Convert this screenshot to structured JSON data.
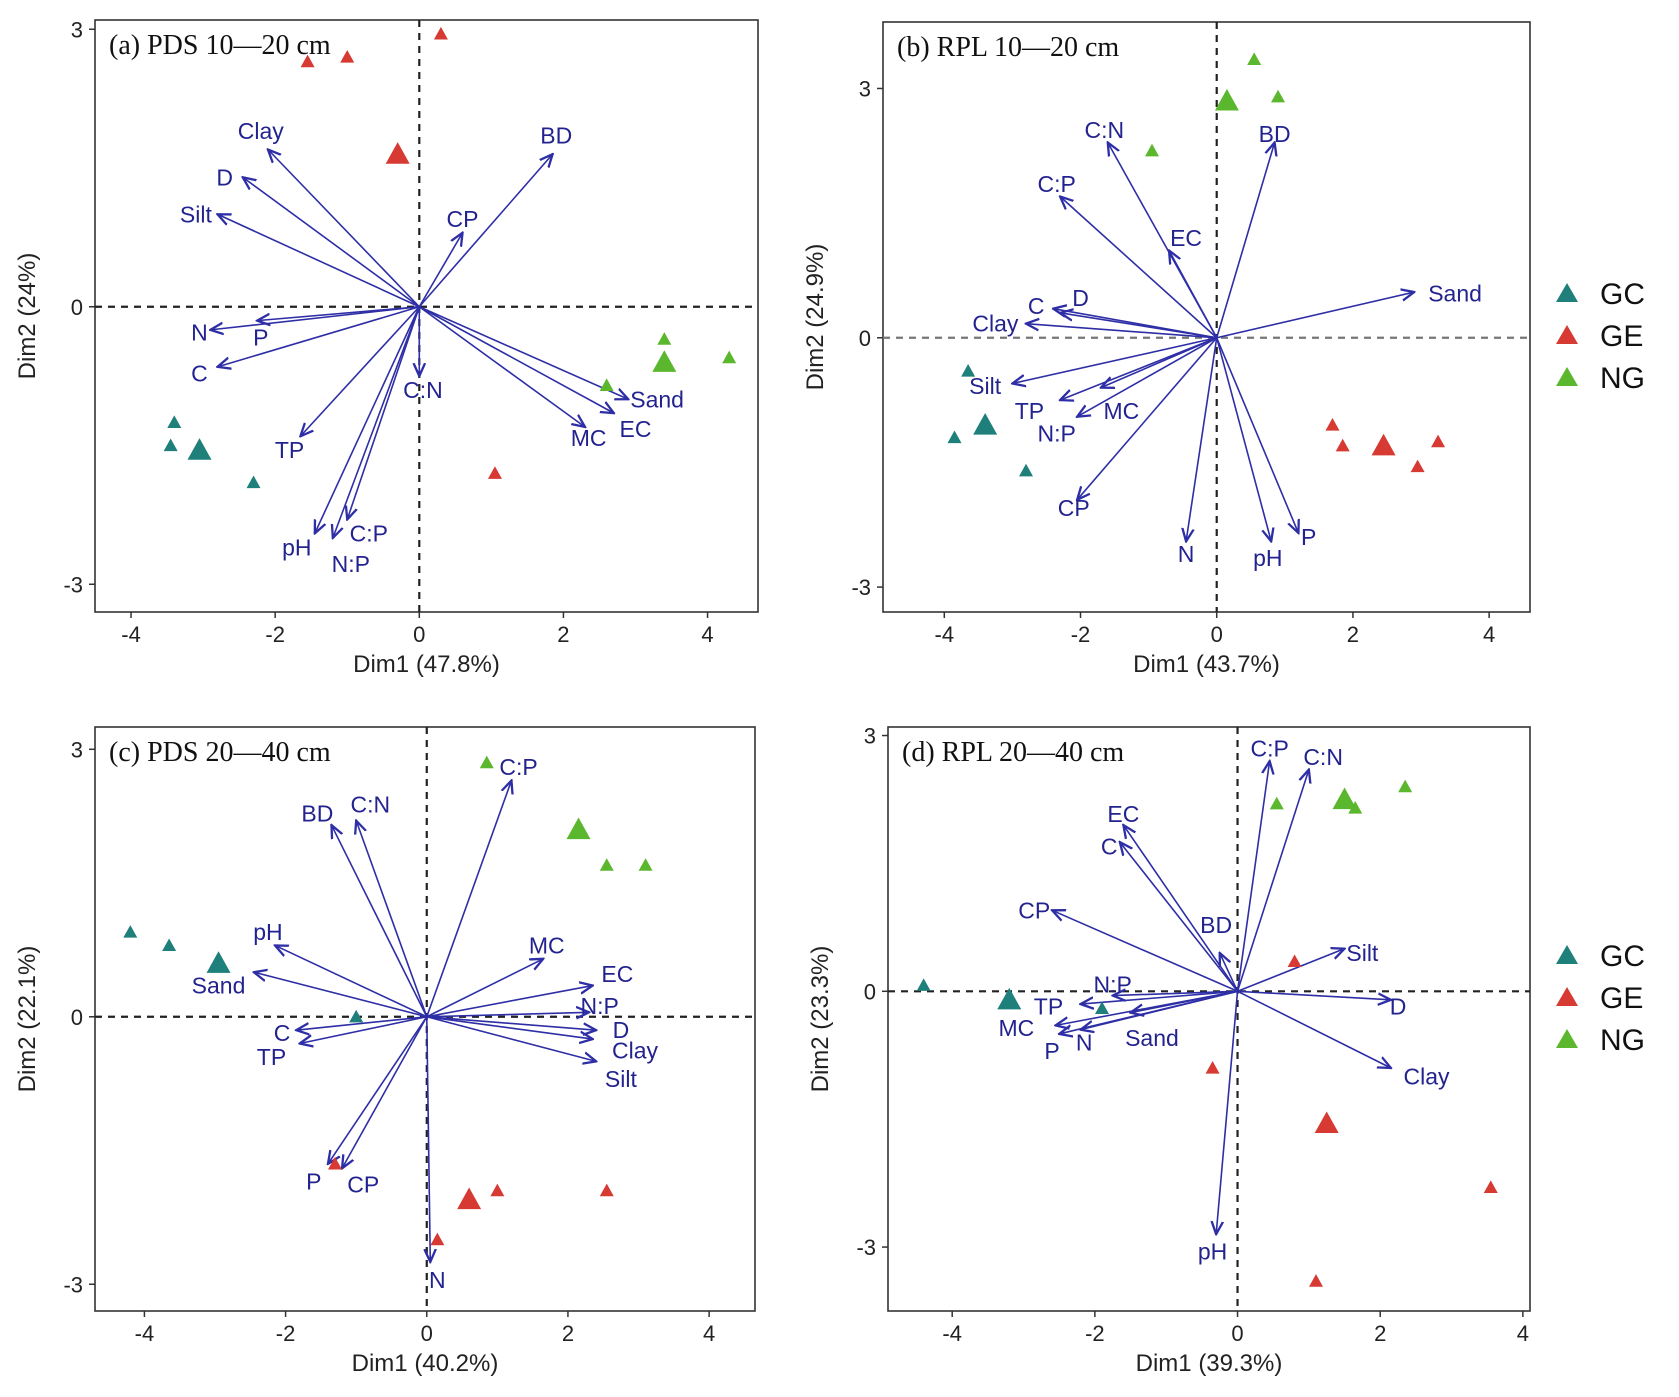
{
  "legend": {
    "items": [
      {
        "name": "GC",
        "color": "#1f7f7a"
      },
      {
        "name": "GE",
        "color": "#d63a32"
      },
      {
        "name": "NG",
        "color": "#5bb82e"
      }
    ]
  },
  "colors": {
    "vector": "#2e2ea6",
    "vector_label": "#23238f"
  },
  "chart_data": [
    {
      "type": "scatter",
      "title": "(a) PDS 10—20 cm",
      "xlabel": "Dim1 (47.8%)",
      "ylabel": "Dim2 (24%)",
      "xlim": [
        -4.5,
        4.7
      ],
      "ylim": [
        -3.3,
        3.1
      ],
      "xticks": [
        -4,
        -2,
        0,
        2,
        4
      ],
      "yticks": [
        -3,
        0,
        3
      ],
      "points": [
        {
          "group": "GC",
          "x": -3.4,
          "y": -1.25,
          "size": "small"
        },
        {
          "group": "GC",
          "x": -3.45,
          "y": -1.5,
          "size": "small"
        },
        {
          "group": "GC",
          "x": -3.05,
          "y": -1.55,
          "size": "large"
        },
        {
          "group": "GC",
          "x": -2.3,
          "y": -1.9,
          "size": "small"
        },
        {
          "group": "GE",
          "x": 0.3,
          "y": 2.95,
          "size": "small"
        },
        {
          "group": "GE",
          "x": -1.55,
          "y": 2.65,
          "size": "small"
        },
        {
          "group": "GE",
          "x": -1.0,
          "y": 2.7,
          "size": "small"
        },
        {
          "group": "GE",
          "x": -0.3,
          "y": 1.65,
          "size": "large"
        },
        {
          "group": "GE",
          "x": 1.05,
          "y": -1.8,
          "size": "small"
        },
        {
          "group": "NG",
          "x": 3.4,
          "y": -0.35,
          "size": "small"
        },
        {
          "group": "NG",
          "x": 3.4,
          "y": -0.6,
          "size": "large"
        },
        {
          "group": "NG",
          "x": 4.3,
          "y": -0.55,
          "size": "small"
        },
        {
          "group": "NG",
          "x": 2.6,
          "y": -0.85,
          "size": "small"
        }
      ],
      "vectors": [
        {
          "name": "Clay",
          "x": -2.1,
          "y": 1.7,
          "lx": -2.2,
          "ly": 1.9
        },
        {
          "name": "D",
          "x": -2.45,
          "y": 1.4,
          "lx": -2.7,
          "ly": 1.4
        },
        {
          "name": "Silt",
          "x": -2.8,
          "y": 1.0,
          "lx": -3.1,
          "ly": 1.0
        },
        {
          "name": "BD",
          "x": 1.85,
          "y": 1.65,
          "lx": 1.9,
          "ly": 1.85
        },
        {
          "name": "CP",
          "x": 0.6,
          "y": 0.8,
          "lx": 0.6,
          "ly": 0.95
        },
        {
          "name": "N",
          "x": -2.9,
          "y": -0.25,
          "lx": -3.05,
          "ly": -0.28
        },
        {
          "name": "P",
          "x": -2.25,
          "y": -0.15,
          "lx": -2.2,
          "ly": -0.33
        },
        {
          "name": "C",
          "x": -2.8,
          "y": -0.65,
          "lx": -3.05,
          "ly": -0.72
        },
        {
          "name": "C:N",
          "x": 0.0,
          "y": -0.75,
          "lx": 0.05,
          "ly": -0.9
        },
        {
          "name": "Sand",
          "x": 2.9,
          "y": -1.0,
          "lx": 3.3,
          "ly": -1.0
        },
        {
          "name": "MC",
          "x": 2.3,
          "y": -1.3,
          "lx": 2.35,
          "ly": -1.42
        },
        {
          "name": "EC",
          "x": 2.7,
          "y": -1.15,
          "lx": 3.0,
          "ly": -1.32
        },
        {
          "name": "TP",
          "x": -1.65,
          "y": -1.4,
          "lx": -1.8,
          "ly": -1.55
        },
        {
          "name": "pH",
          "x": -1.45,
          "y": -2.45,
          "lx": -1.7,
          "ly": -2.6
        },
        {
          "name": "C:P",
          "x": -1.0,
          "y": -2.3,
          "lx": -0.7,
          "ly": -2.45
        },
        {
          "name": "N:P",
          "x": -1.2,
          "y": -2.5,
          "lx": -0.95,
          "ly": -2.78
        }
      ]
    },
    {
      "type": "scatter",
      "title": "(b) RPL 10—20 cm",
      "xlabel": "Dim1 (43.7%)",
      "ylabel": "Dim2 (24.9%)",
      "xlim": [
        -4.9,
        4.6
      ],
      "ylim": [
        -3.3,
        3.8
      ],
      "xticks": [
        -4,
        -2,
        0,
        2,
        4
      ],
      "yticks": [
        -3,
        0,
        3
      ],
      "points": [
        {
          "group": "GC",
          "x": -3.65,
          "y": -0.4,
          "size": "small"
        },
        {
          "group": "GC",
          "x": -3.4,
          "y": -1.05,
          "size": "large"
        },
        {
          "group": "GC",
          "x": -3.85,
          "y": -1.2,
          "size": "small"
        },
        {
          "group": "GC",
          "x": -2.8,
          "y": -1.6,
          "size": "small"
        },
        {
          "group": "GE",
          "x": 1.7,
          "y": -1.05,
          "size": "small"
        },
        {
          "group": "GE",
          "x": 1.85,
          "y": -1.3,
          "size": "small"
        },
        {
          "group": "GE",
          "x": 2.45,
          "y": -1.3,
          "size": "large"
        },
        {
          "group": "GE",
          "x": 3.25,
          "y": -1.25,
          "size": "small"
        },
        {
          "group": "GE",
          "x": 2.95,
          "y": -1.55,
          "size": "small"
        },
        {
          "group": "NG",
          "x": 0.55,
          "y": 3.35,
          "size": "small"
        },
        {
          "group": "NG",
          "x": 0.15,
          "y": 2.85,
          "size": "large"
        },
        {
          "group": "NG",
          "x": 0.9,
          "y": 2.9,
          "size": "small"
        },
        {
          "group": "NG",
          "x": -0.95,
          "y": 2.25,
          "size": "small"
        }
      ],
      "vectors": [
        {
          "name": "C:N",
          "x": -1.6,
          "y": 2.35,
          "lx": -1.65,
          "ly": 2.5
        },
        {
          "name": "BD",
          "x": 0.85,
          "y": 2.35,
          "lx": 0.85,
          "ly": 2.45
        },
        {
          "name": "C:P",
          "x": -2.3,
          "y": 1.7,
          "lx": -2.35,
          "ly": 1.85
        },
        {
          "name": "EC",
          "x": -0.7,
          "y": 1.05,
          "lx": -0.45,
          "ly": 1.2
        },
        {
          "name": "Sand",
          "x": 2.9,
          "y": 0.55,
          "lx": 3.5,
          "ly": 0.53
        },
        {
          "name": "C",
          "x": -2.4,
          "y": 0.35,
          "lx": -2.65,
          "ly": 0.38
        },
        {
          "name": "D",
          "x": -2.3,
          "y": 0.3,
          "lx": -2.0,
          "ly": 0.48
        },
        {
          "name": "Clay",
          "x": -2.8,
          "y": 0.17,
          "lx": -3.25,
          "ly": 0.17
        },
        {
          "name": "Silt",
          "x": -3.0,
          "y": -0.55,
          "lx": -3.4,
          "ly": -0.58
        },
        {
          "name": "TP",
          "x": -2.3,
          "y": -0.75,
          "lx": -2.75,
          "ly": -0.88
        },
        {
          "name": "MC",
          "x": -1.7,
          "y": -0.6,
          "lx": -1.4,
          "ly": -0.88
        },
        {
          "name": "N:P",
          "x": -2.05,
          "y": -0.95,
          "lx": -2.35,
          "ly": -1.15
        },
        {
          "name": "CP",
          "x": -2.05,
          "y": -1.95,
          "lx": -2.1,
          "ly": -2.05
        },
        {
          "name": "N",
          "x": -0.45,
          "y": -2.45,
          "lx": -0.45,
          "ly": -2.6
        },
        {
          "name": "pH",
          "x": 0.8,
          "y": -2.45,
          "lx": 0.75,
          "ly": -2.65
        },
        {
          "name": "P",
          "x": 1.2,
          "y": -2.35,
          "lx": 1.35,
          "ly": -2.4
        }
      ]
    },
    {
      "type": "scatter",
      "title": "(c) PDS 20—40 cm",
      "xlabel": "Dim1 (40.2%)",
      "ylabel": "Dim2 (22.1%)",
      "xlim": [
        -4.7,
        4.65
      ],
      "ylim": [
        -3.3,
        3.25
      ],
      "xticks": [
        -4,
        -2,
        0,
        2,
        4
      ],
      "yticks": [
        -3,
        0,
        3
      ],
      "points": [
        {
          "group": "GC",
          "x": -4.2,
          "y": 0.95,
          "size": "small"
        },
        {
          "group": "GC",
          "x": -3.65,
          "y": 0.8,
          "size": "small"
        },
        {
          "group": "GC",
          "x": -2.95,
          "y": 0.6,
          "size": "large"
        },
        {
          "group": "GC",
          "x": -1.0,
          "y": 0.0,
          "size": "small"
        },
        {
          "group": "GE",
          "x": 0.6,
          "y": -2.05,
          "size": "large"
        },
        {
          "group": "GE",
          "x": 1.0,
          "y": -1.95,
          "size": "small"
        },
        {
          "group": "GE",
          "x": 2.55,
          "y": -1.95,
          "size": "small"
        },
        {
          "group": "GE",
          "x": 0.15,
          "y": -2.5,
          "size": "small"
        },
        {
          "group": "GE",
          "x": -1.3,
          "y": -1.65,
          "size": "small"
        },
        {
          "group": "NG",
          "x": 0.85,
          "y": 2.85,
          "size": "small"
        },
        {
          "group": "NG",
          "x": 2.15,
          "y": 2.1,
          "size": "large"
        },
        {
          "group": "NG",
          "x": 2.55,
          "y": 1.7,
          "size": "small"
        },
        {
          "group": "NG",
          "x": 3.1,
          "y": 1.7,
          "size": "small"
        }
      ],
      "vectors": [
        {
          "name": "C:P",
          "x": 1.2,
          "y": 2.65,
          "lx": 1.3,
          "ly": 2.8
        },
        {
          "name": "BD",
          "x": -1.35,
          "y": 2.15,
          "lx": -1.55,
          "ly": 2.28
        },
        {
          "name": "C:N",
          "x": -1.0,
          "y": 2.2,
          "lx": -0.8,
          "ly": 2.38
        },
        {
          "name": "MC",
          "x": 1.65,
          "y": 0.65,
          "lx": 1.7,
          "ly": 0.8
        },
        {
          "name": "EC",
          "x": 2.35,
          "y": 0.35,
          "lx": 2.7,
          "ly": 0.48
        },
        {
          "name": "pH",
          "x": -2.15,
          "y": 0.8,
          "lx": -2.25,
          "ly": 0.95
        },
        {
          "name": "Sand",
          "x": -2.45,
          "y": 0.5,
          "lx": -2.95,
          "ly": 0.35
        },
        {
          "name": "N:P",
          "x": 2.3,
          "y": 0.05,
          "lx": 2.45,
          "ly": 0.12
        },
        {
          "name": "D",
          "x": 2.4,
          "y": -0.15,
          "lx": 2.75,
          "ly": -0.15
        },
        {
          "name": "Clay",
          "x": 2.35,
          "y": -0.25,
          "lx": 2.95,
          "ly": -0.38
        },
        {
          "name": "Silt",
          "x": 2.4,
          "y": -0.5,
          "lx": 2.75,
          "ly": -0.7
        },
        {
          "name": "C",
          "x": -1.85,
          "y": -0.15,
          "lx": -2.05,
          "ly": -0.18
        },
        {
          "name": "TP",
          "x": -1.8,
          "y": -0.3,
          "lx": -2.2,
          "ly": -0.45
        },
        {
          "name": "P",
          "x": -1.4,
          "y": -1.65,
          "lx": -1.6,
          "ly": -1.85
        },
        {
          "name": "CP",
          "x": -1.2,
          "y": -1.7,
          "lx": -0.9,
          "ly": -1.88
        },
        {
          "name": "N",
          "x": 0.05,
          "y": -2.75,
          "lx": 0.15,
          "ly": -2.95
        }
      ]
    },
    {
      "type": "scatter",
      "title": "(d) RPL 20—40 cm",
      "xlabel": "Dim1 (39.3%)",
      "ylabel": "Dim2 (23.3%)",
      "xlim": [
        -4.9,
        4.1
      ],
      "ylim": [
        -3.75,
        3.1
      ],
      "xticks": [
        -4,
        -2,
        0,
        2,
        4
      ],
      "yticks": [
        -3,
        0,
        3
      ],
      "points": [
        {
          "group": "GC",
          "x": -4.4,
          "y": 0.07,
          "size": "small"
        },
        {
          "group": "GC",
          "x": -3.2,
          "y": -0.1,
          "size": "large"
        },
        {
          "group": "GC",
          "x": -1.9,
          "y": -0.2,
          "size": "small"
        },
        {
          "group": "GE",
          "x": 0.8,
          "y": 0.35,
          "size": "small"
        },
        {
          "group": "GE",
          "x": -0.35,
          "y": -0.9,
          "size": "small"
        },
        {
          "group": "GE",
          "x": 1.25,
          "y": -1.55,
          "size": "large"
        },
        {
          "group": "GE",
          "x": 3.55,
          "y": -2.3,
          "size": "small"
        },
        {
          "group": "GE",
          "x": 1.1,
          "y": -3.4,
          "size": "small"
        },
        {
          "group": "NG",
          "x": 0.55,
          "y": 2.2,
          "size": "small"
        },
        {
          "group": "NG",
          "x": 1.5,
          "y": 2.25,
          "size": "large"
        },
        {
          "group": "NG",
          "x": 1.65,
          "y": 2.15,
          "size": "small"
        },
        {
          "group": "NG",
          "x": 2.35,
          "y": 2.4,
          "size": "small"
        }
      ],
      "vectors": [
        {
          "name": "C:P",
          "x": 0.45,
          "y": 2.7,
          "lx": 0.45,
          "ly": 2.85
        },
        {
          "name": "C:N",
          "x": 1.0,
          "y": 2.6,
          "lx": 1.2,
          "ly": 2.75
        },
        {
          "name": "EC",
          "x": -1.6,
          "y": 1.95,
          "lx": -1.6,
          "ly": 2.08
        },
        {
          "name": "C",
          "x": -1.65,
          "y": 1.75,
          "lx": -1.8,
          "ly": 1.7
        },
        {
          "name": "CP",
          "x": -2.6,
          "y": 0.95,
          "lx": -2.85,
          "ly": 0.95
        },
        {
          "name": "BD",
          "x": -0.25,
          "y": 0.45,
          "lx": -0.3,
          "ly": 0.78
        },
        {
          "name": "Silt",
          "x": 1.5,
          "y": 0.5,
          "lx": 1.75,
          "ly": 0.45
        },
        {
          "name": "N:P",
          "x": -1.75,
          "y": -0.05,
          "lx": -1.75,
          "ly": 0.08
        },
        {
          "name": "D",
          "x": 2.15,
          "y": -0.1,
          "lx": 2.25,
          "ly": -0.18
        },
        {
          "name": "TP",
          "x": -2.2,
          "y": -0.15,
          "lx": -2.65,
          "ly": -0.18
        },
        {
          "name": "MC",
          "x": -2.55,
          "y": -0.4,
          "lx": -3.1,
          "ly": -0.43
        },
        {
          "name": "Sand",
          "x": -1.5,
          "y": -0.25,
          "lx": -1.2,
          "ly": -0.55
        },
        {
          "name": "P",
          "x": -2.5,
          "y": -0.5,
          "lx": -2.6,
          "ly": -0.7
        },
        {
          "name": "N",
          "x": -2.2,
          "y": -0.45,
          "lx": -2.15,
          "ly": -0.6
        },
        {
          "name": "Clay",
          "x": 2.15,
          "y": -0.9,
          "lx": 2.65,
          "ly": -1.0
        },
        {
          "name": "pH",
          "x": -0.3,
          "y": -2.85,
          "lx": -0.35,
          "ly": -3.05
        }
      ]
    }
  ]
}
